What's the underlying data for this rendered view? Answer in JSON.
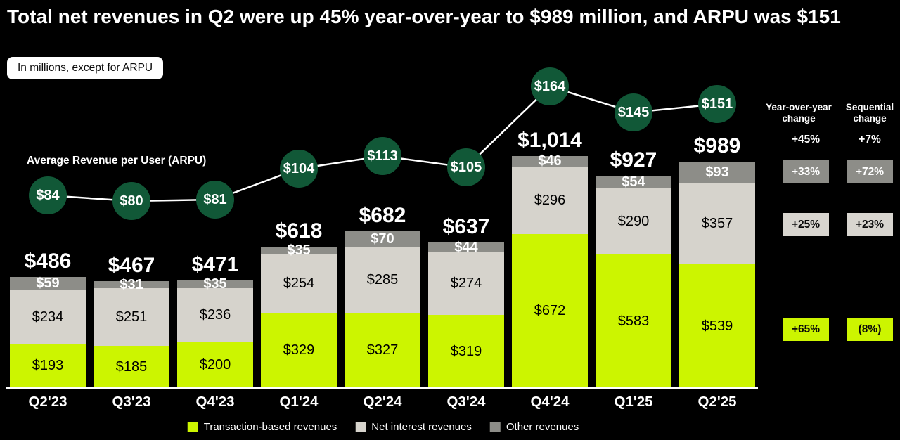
{
  "title": "Total net revenues in Q2 were up 45% year-over-year to $989 million, and ARPU was $151",
  "note_badge": "In millions, except for ARPU",
  "colors": {
    "background": "#000000",
    "text": "#ffffff",
    "accent_yellow": "#ccf500",
    "arpu_green": "#115837",
    "light_gray": "#d6d3cc",
    "dark_gray": "#8d8d88"
  },
  "chart_data": {
    "type": "bar",
    "stacked": true,
    "unit": "USD millions",
    "value_prefix": "$",
    "gridlines": false,
    "legend_position": "bottom",
    "categories": [
      "Q2'23",
      "Q3'23",
      "Q4'23",
      "Q1'24",
      "Q2'24",
      "Q3'24",
      "Q4'24",
      "Q1'25",
      "Q2'25"
    ],
    "series": [
      {
        "key": "transaction",
        "name": "Transaction-based revenues",
        "color": "#ccf500",
        "text_color": "#000000",
        "values": [
          193,
          185,
          200,
          329,
          327,
          319,
          672,
          583,
          539
        ]
      },
      {
        "key": "net-interest",
        "name": "Net interest revenues",
        "color": "#d6d3cc",
        "text_color": "#000000",
        "values": [
          234,
          251,
          236,
          254,
          285,
          274,
          296,
          290,
          357
        ]
      },
      {
        "key": "other",
        "name": "Other revenues",
        "color": "#8d8d88",
        "text_color": "#ffffff",
        "values": [
          59,
          31,
          35,
          35,
          70,
          44,
          46,
          54,
          93
        ]
      }
    ],
    "totals": [
      486,
      467,
      471,
      618,
      682,
      637,
      1014,
      927,
      989
    ],
    "line_series": {
      "key": "arpu",
      "name": "Average Revenue per User (ARPU)",
      "color": "#115837",
      "prefix": "$",
      "values": [
        84,
        80,
        81,
        104,
        113,
        105,
        164,
        145,
        151
      ]
    }
  },
  "right_panel": {
    "columns": [
      "Year-over-year change",
      "Sequential change"
    ],
    "rows": [
      {
        "key": "total",
        "style": "plain",
        "values": [
          "+45%",
          "+7%"
        ]
      },
      {
        "key": "other-revenues",
        "style": "dark",
        "values": [
          "+33%",
          "+72%"
        ]
      },
      {
        "key": "net-interest-revenues",
        "style": "light",
        "values": [
          "+25%",
          "+23%"
        ]
      },
      {
        "key": "transaction-based-revenues",
        "style": "green",
        "values": [
          "+65%",
          "(8%)"
        ]
      }
    ]
  }
}
